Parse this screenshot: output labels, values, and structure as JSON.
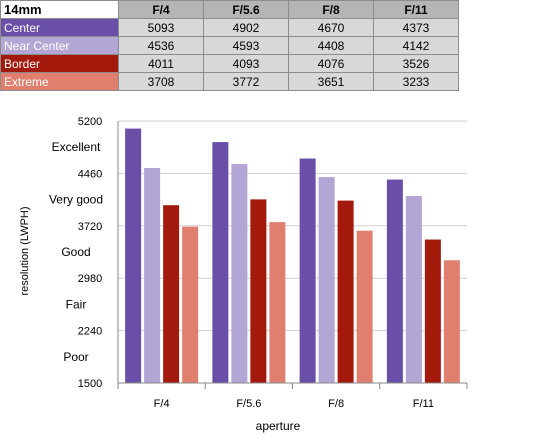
{
  "table": {
    "title": "14mm",
    "columns": [
      "F/4",
      "F/5.6",
      "F/8",
      "F/11"
    ],
    "rows": [
      {
        "label": "Center",
        "color": "#6a4fa8",
        "values": [
          "5093",
          "4902",
          "4670",
          "4373"
        ]
      },
      {
        "label": "Near Center",
        "color": "#b3a5d4",
        "values": [
          "4536",
          "4593",
          "4408",
          "4142"
        ]
      },
      {
        "label": "Border",
        "color": "#a31a0c",
        "values": [
          "4011",
          "4093",
          "4076",
          "3526"
        ]
      },
      {
        "label": "Extreme",
        "color": "#e07f6e",
        "values": [
          "3708",
          "3772",
          "3651",
          "3233"
        ]
      }
    ]
  },
  "chart_data": {
    "type": "bar",
    "categories": [
      "F/4",
      "F/5.6",
      "F/8",
      "F/11"
    ],
    "series": [
      {
        "name": "Center",
        "color": "#6a4fa8",
        "values": [
          5093,
          4902,
          4670,
          4373
        ]
      },
      {
        "name": "Near Center",
        "color": "#b3a5d4",
        "values": [
          4536,
          4593,
          4408,
          4142
        ]
      },
      {
        "name": "Border",
        "color": "#a31a0c",
        "values": [
          4011,
          4093,
          4076,
          3526
        ]
      },
      {
        "name": "Extreme",
        "color": "#e07f6e",
        "values": [
          3708,
          3772,
          3651,
          3233
        ]
      }
    ],
    "xlabel": "aperture",
    "ylabel": "resolution (LWPH)",
    "ylim": [
      1500,
      5200
    ],
    "yticks": [
      1500,
      2240,
      2980,
      3720,
      4460,
      5200
    ],
    "quality_labels": [
      {
        "label": "Excellent",
        "value": 4830
      },
      {
        "label": "Very good",
        "value": 4090
      },
      {
        "label": "Good",
        "value": 3350
      },
      {
        "label": "Fair",
        "value": 2610
      },
      {
        "label": "Poor",
        "value": 1870
      }
    ],
    "grid": true,
    "gridline_color": "#d0d0d0"
  }
}
